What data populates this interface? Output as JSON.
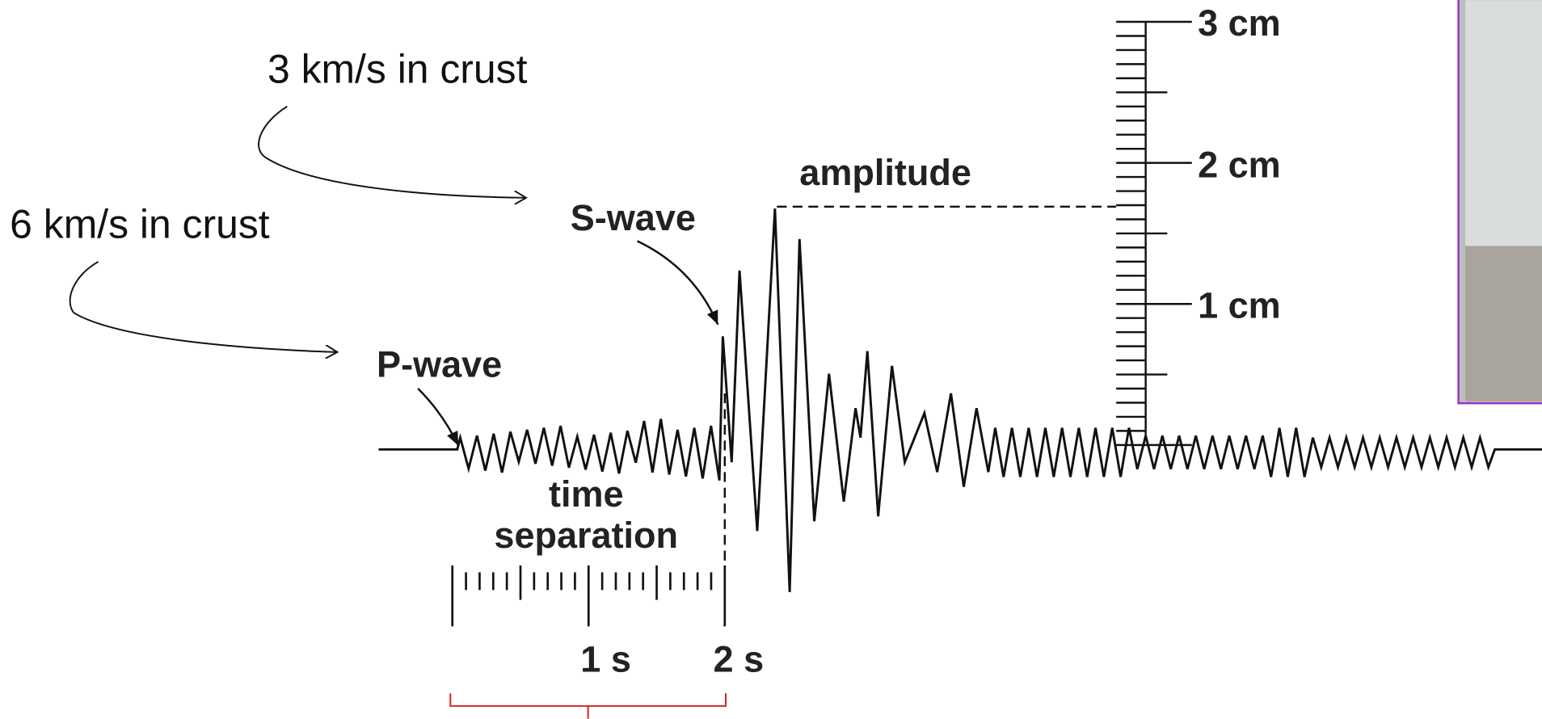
{
  "annotations": {
    "s_speed": "3 km/s in crust",
    "p_speed": "6 km/s in crust"
  },
  "labels": {
    "p_wave": "P-wave",
    "s_wave": "S-wave",
    "amplitude": "amplitude",
    "time_separation": [
      "time",
      "separation"
    ]
  },
  "time_scale": {
    "ticks": [
      "1 s",
      "2 s"
    ]
  },
  "amplitude_scale": {
    "ticks": [
      "1 cm",
      "2 cm",
      "3 cm"
    ]
  }
}
